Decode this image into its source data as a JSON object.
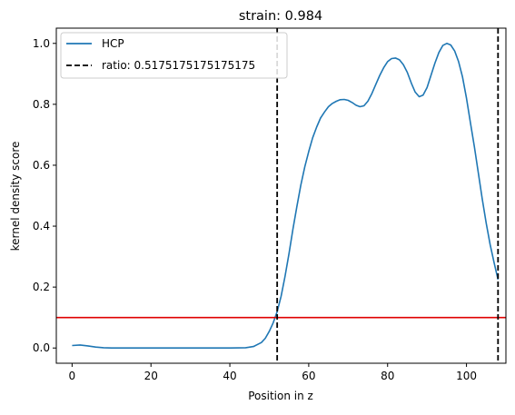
{
  "chart_data": {
    "type": "line",
    "title": "strain: 0.984",
    "xlabel": "Position in z",
    "ylabel": "kernel density score",
    "xlim": [
      -4,
      110
    ],
    "ylim": [
      -0.05,
      1.05
    ],
    "xticks": [
      0,
      20,
      40,
      60,
      80,
      100
    ],
    "xtick_labels": [
      "0",
      "20",
      "40",
      "60",
      "80",
      "100"
    ],
    "yticks": [
      0.0,
      0.2,
      0.4,
      0.6,
      0.8,
      1.0
    ],
    "ytick_labels": [
      "0.0",
      "0.2",
      "0.4",
      "0.6",
      "0.8",
      "1.0"
    ],
    "grid": false,
    "legend_position": "top-left",
    "series": [
      {
        "name": "HCP",
        "color": "#1f77b4",
        "x": [
          0,
          2,
          4,
          6,
          8,
          10,
          15,
          20,
          25,
          30,
          35,
          40,
          44,
          46,
          48,
          49,
          50,
          51,
          52,
          53,
          54,
          55,
          56,
          57,
          58,
          59,
          60,
          61,
          62,
          63,
          64,
          65,
          66,
          67,
          68,
          69,
          70,
          71,
          72,
          73,
          74,
          75,
          76,
          77,
          78,
          79,
          80,
          81,
          82,
          83,
          84,
          85,
          86,
          87,
          88,
          89,
          90,
          91,
          92,
          93,
          94,
          95,
          96,
          97,
          98,
          99,
          100,
          101,
          102,
          103,
          104,
          105,
          106,
          107,
          108
        ],
        "y": [
          0.008,
          0.01,
          0.007,
          0.003,
          0.001,
          0.0,
          0.0,
          0.0,
          0.0,
          0.0,
          0.0,
          0.0,
          0.001,
          0.005,
          0.018,
          0.032,
          0.055,
          0.083,
          0.12,
          0.17,
          0.235,
          0.31,
          0.39,
          0.465,
          0.535,
          0.595,
          0.645,
          0.69,
          0.725,
          0.755,
          0.775,
          0.792,
          0.803,
          0.81,
          0.815,
          0.816,
          0.813,
          0.806,
          0.797,
          0.792,
          0.795,
          0.81,
          0.835,
          0.865,
          0.895,
          0.92,
          0.94,
          0.95,
          0.952,
          0.946,
          0.93,
          0.905,
          0.87,
          0.84,
          0.825,
          0.83,
          0.855,
          0.895,
          0.935,
          0.97,
          0.993,
          1.0,
          0.995,
          0.975,
          0.94,
          0.89,
          0.82,
          0.74,
          0.66,
          0.575,
          0.49,
          0.41,
          0.34,
          0.28,
          0.225
        ]
      },
      {
        "name": "ratio: 0.5175175175175175",
        "color": "#000000",
        "style": "dashed",
        "vertical_lines_x": [
          52.0,
          108.0
        ]
      }
    ],
    "hline": {
      "y": 0.1,
      "color": "#e00000"
    }
  }
}
